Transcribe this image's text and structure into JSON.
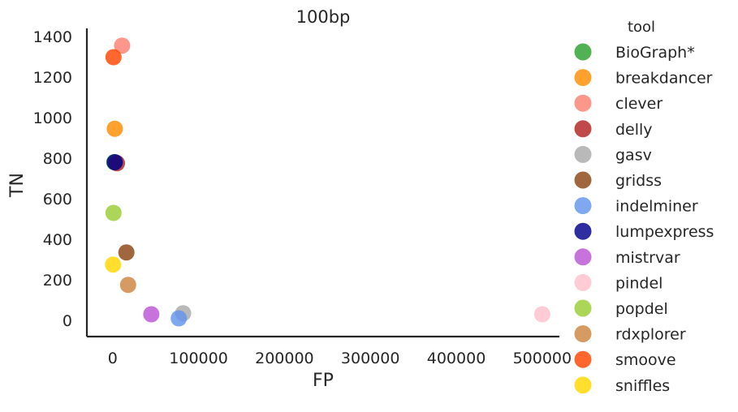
{
  "chart_data": {
    "type": "scatter",
    "title": "100bp",
    "xlabel": "FP",
    "ylabel": "TN",
    "xlim": [
      -30000,
      520000
    ],
    "ylim": [
      -80,
      1440
    ],
    "xticks": [
      0,
      100000,
      200000,
      300000,
      400000,
      500000
    ],
    "xtick_labels": [
      "0",
      "100000",
      "200000",
      "300000",
      "400000",
      "500000"
    ],
    "yticks": [
      0,
      200,
      400,
      600,
      800,
      1000,
      1200,
      1400
    ],
    "ytick_labels": [
      "0",
      "200",
      "400",
      "600",
      "800",
      "1000",
      "1200",
      "1400"
    ],
    "grid": false,
    "legend_title": "tool",
    "legend_position": "right",
    "series": [
      {
        "name": "BioGraph*",
        "color": "#2ca02c",
        "x": [
          2000
        ],
        "y": [
          780
        ]
      },
      {
        "name": "breakdancer",
        "color": "#ff8c00",
        "x": [
          2500
        ],
        "y": [
          945
        ]
      },
      {
        "name": "clever",
        "color": "#fa8072",
        "x": [
          11000
        ],
        "y": [
          1355
        ]
      },
      {
        "name": "delly",
        "color": "#b22222",
        "x": [
          5000
        ],
        "y": [
          775
        ]
      },
      {
        "name": "gasv",
        "color": "#a9a9a9",
        "x": [
          82000
        ],
        "y": [
          35
        ]
      },
      {
        "name": "gridss",
        "color": "#8b4513",
        "x": [
          16000
        ],
        "y": [
          335
        ]
      },
      {
        "name": "indelminer",
        "color": "#6495ed",
        "x": [
          77000
        ],
        "y": [
          10
        ]
      },
      {
        "name": "lumpexpress",
        "color": "#00008b",
        "x": [
          2500
        ],
        "y": [
          780
        ]
      },
      {
        "name": "mistrvar",
        "color": "#ba55d3",
        "x": [
          45000
        ],
        "y": [
          30
        ]
      },
      {
        "name": "pindel",
        "color": "#ffc0cb",
        "x": [
          500000
        ],
        "y": [
          30
        ]
      },
      {
        "name": "popdel",
        "color": "#9acd32",
        "x": [
          1000
        ],
        "y": [
          530
        ]
      },
      {
        "name": "rdxplorer",
        "color": "#cd853f",
        "x": [
          18000
        ],
        "y": [
          175
        ]
      },
      {
        "name": "smoove",
        "color": "#ff4500",
        "x": [
          1000
        ],
        "y": [
          1298
        ]
      },
      {
        "name": "sniffles",
        "color": "#ffd700",
        "x": [
          500
        ],
        "y": [
          275
        ]
      }
    ]
  }
}
